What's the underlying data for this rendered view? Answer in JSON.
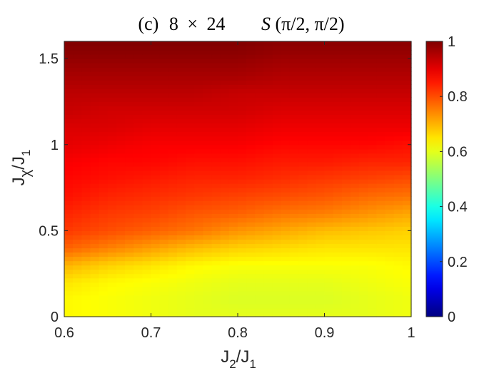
{
  "chart_data": {
    "type": "heatmap",
    "title": {
      "panel": "(c)",
      "size_a": "8",
      "times": "×",
      "size_b": "24",
      "func": "S",
      "args": "(π/2, π/2)"
    },
    "xlabel": {
      "main": "J",
      "sub1": "2",
      "slash": "/J",
      "sub2": "1"
    },
    "ylabel": {
      "main": "J",
      "sub1": "χ",
      "slash": "/J",
      "sub2": "1"
    },
    "xlim": [
      0.6,
      1.0
    ],
    "ylim": [
      0,
      1.6
    ],
    "x_ticks": [
      "0.6",
      "0.7",
      "0.8",
      "0.9",
      "1"
    ],
    "y_ticks": [
      "0",
      "0.5",
      "1",
      "1.5"
    ],
    "colorbar": {
      "colormap": "jet",
      "clim": [
        0,
        1
      ],
      "ticks": [
        "0",
        "0.2",
        "0.4",
        "0.6",
        "0.8",
        "1"
      ]
    },
    "x": [
      0.6,
      0.65,
      0.7,
      0.75,
      0.8,
      0.85,
      0.9,
      0.95,
      1.0
    ],
    "y": [
      0.0,
      0.1,
      0.2,
      0.3,
      0.4,
      0.5,
      0.6,
      0.7,
      0.8,
      0.9,
      1.0,
      1.1,
      1.2,
      1.3,
      1.4,
      1.5,
      1.6
    ],
    "z": [
      [
        0.63,
        0.62,
        0.61,
        0.6,
        0.6,
        0.6,
        0.6,
        0.6,
        0.61
      ],
      [
        0.63,
        0.62,
        0.61,
        0.6,
        0.59,
        0.59,
        0.59,
        0.6,
        0.61
      ],
      [
        0.65,
        0.63,
        0.62,
        0.61,
        0.6,
        0.6,
        0.6,
        0.61,
        0.62
      ],
      [
        0.7,
        0.67,
        0.65,
        0.63,
        0.62,
        0.62,
        0.62,
        0.62,
        0.63
      ],
      [
        0.78,
        0.75,
        0.72,
        0.69,
        0.67,
        0.66,
        0.65,
        0.65,
        0.65
      ],
      [
        0.82,
        0.8,
        0.78,
        0.76,
        0.73,
        0.71,
        0.69,
        0.68,
        0.67
      ],
      [
        0.84,
        0.82,
        0.81,
        0.79,
        0.78,
        0.76,
        0.75,
        0.73,
        0.71
      ],
      [
        0.86,
        0.84,
        0.83,
        0.82,
        0.81,
        0.8,
        0.79,
        0.77,
        0.76
      ],
      [
        0.87,
        0.86,
        0.85,
        0.84,
        0.84,
        0.83,
        0.82,
        0.81,
        0.8
      ],
      [
        0.88,
        0.87,
        0.87,
        0.86,
        0.86,
        0.85,
        0.85,
        0.84,
        0.84
      ],
      [
        0.9,
        0.89,
        0.88,
        0.88,
        0.88,
        0.87,
        0.87,
        0.87,
        0.86
      ],
      [
        0.91,
        0.91,
        0.9,
        0.9,
        0.9,
        0.89,
        0.89,
        0.89,
        0.89
      ],
      [
        0.93,
        0.92,
        0.92,
        0.92,
        0.92,
        0.91,
        0.91,
        0.91,
        0.91
      ],
      [
        0.94,
        0.94,
        0.94,
        0.94,
        0.93,
        0.93,
        0.93,
        0.93,
        0.93
      ],
      [
        0.96,
        0.96,
        0.96,
        0.96,
        0.96,
        0.95,
        0.95,
        0.95,
        0.95
      ],
      [
        0.98,
        0.98,
        0.98,
        0.98,
        0.98,
        0.97,
        0.97,
        0.97,
        0.97
      ],
      [
        1.0,
        1.0,
        1.0,
        1.0,
        1.0,
        0.99,
        0.99,
        0.99,
        0.99
      ]
    ]
  }
}
